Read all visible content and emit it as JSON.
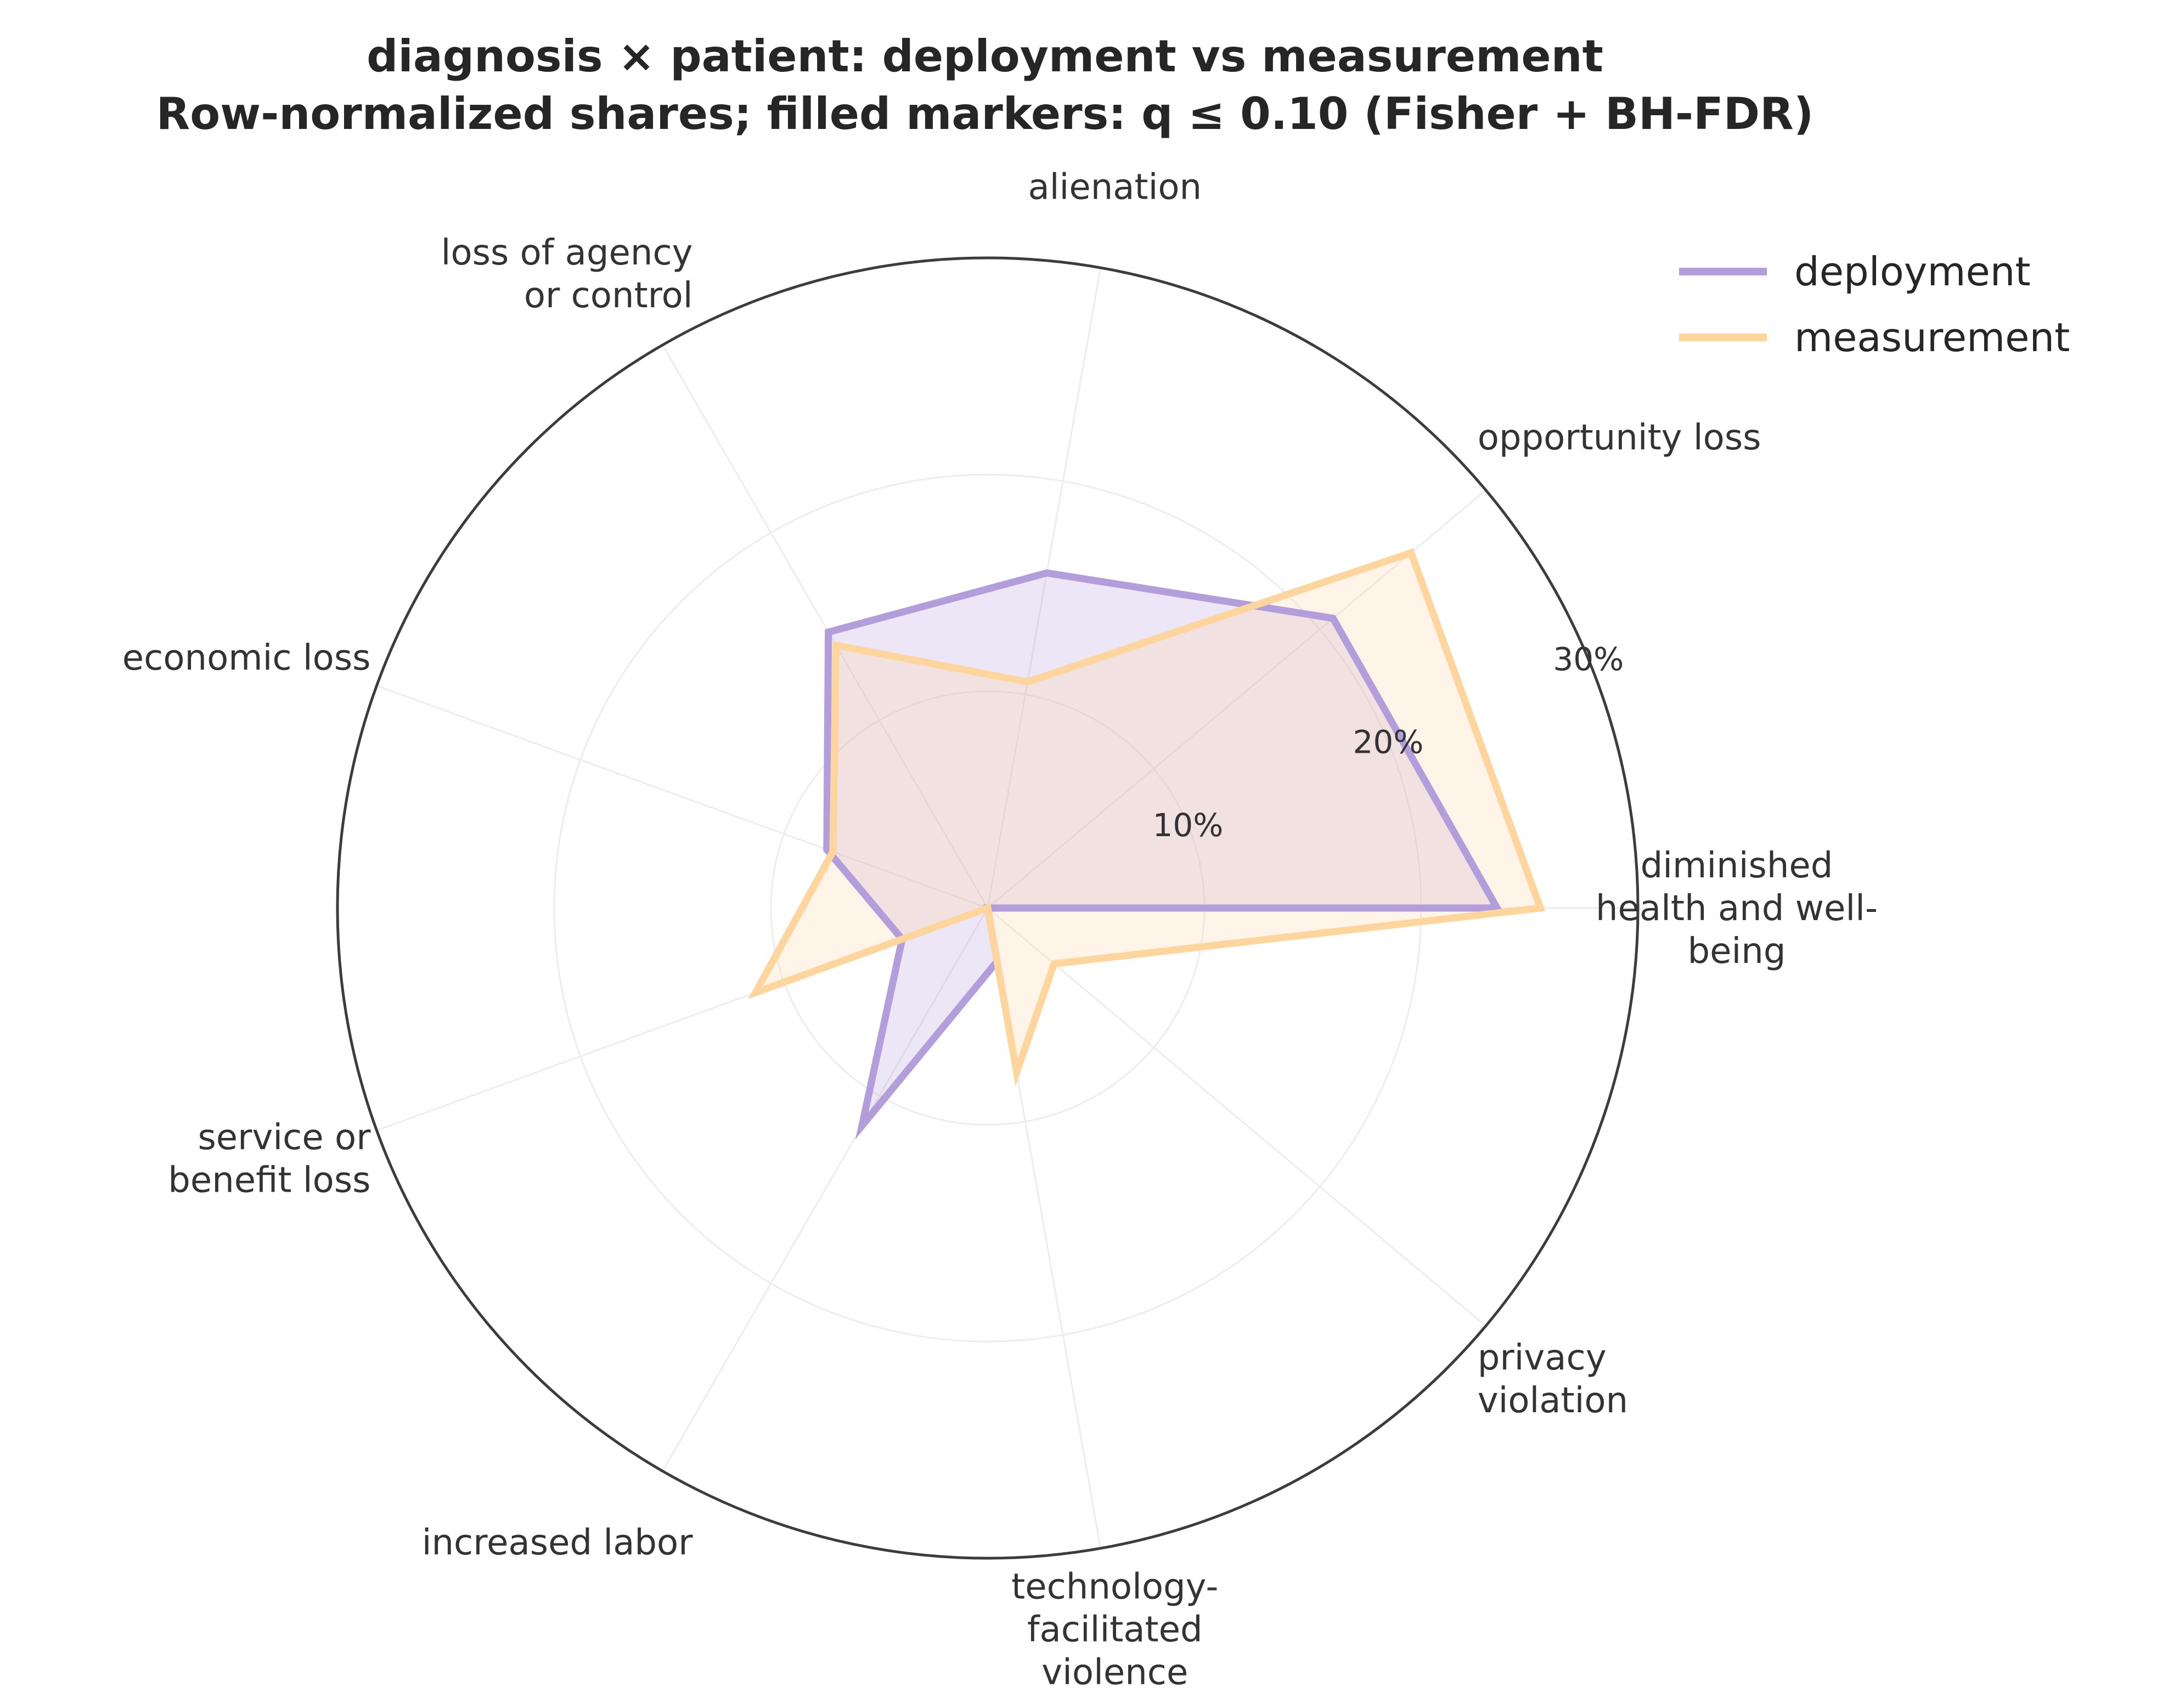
{
  "title": [
    "diagnosis × patient: deployment vs measurement",
    "Row-normalized shares; filled markers: q ≤ 0.10 (Fisher + BH-FDR)"
  ],
  "chart_data": {
    "type": "radar",
    "categories": [
      [
        "diminished",
        "health and well-",
        "being"
      ],
      [
        "opportunity loss"
      ],
      [
        "alienation"
      ],
      [
        "loss of agency",
        "or control"
      ],
      [
        "economic loss"
      ],
      [
        "service or",
        "benefit loss"
      ],
      [
        "increased labor"
      ],
      [
        "technology-",
        "facilitated",
        "violence"
      ],
      [
        "privacy",
        "violation"
      ]
    ],
    "radial_ticks": [
      10,
      20,
      30
    ],
    "radial_tick_labels": [
      "10%",
      "20%",
      "30%"
    ],
    "rlim": [
      0,
      30
    ],
    "legend_position": "top-right",
    "series": [
      {
        "name": "deployment",
        "color": "#b39ddb",
        "values": [
          23.5,
          20.8,
          15.7,
          14.7,
          7.9,
          4.2,
          11.6,
          2.5,
          0.0
        ]
      },
      {
        "name": "measurement",
        "color": "#ffd59e",
        "values": [
          25.5,
          25.5,
          10.6,
          14.0,
          7.6,
          11.4,
          0.0,
          7.7,
          4.0
        ]
      }
    ]
  }
}
